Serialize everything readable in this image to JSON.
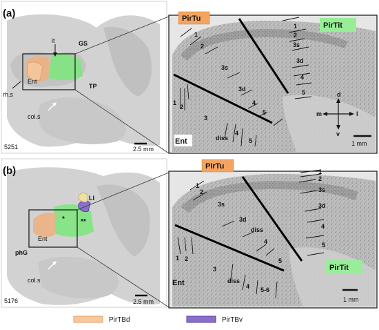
{
  "panel_a": {
    "letter": "(a)",
    "specimen": "5251",
    "overview": {
      "labels": [
        "it",
        "GS",
        "TP",
        "Ent",
        "rh.s",
        "col.s"
      ],
      "scale_bar": "2.5 mm"
    },
    "detail": {
      "pirtu_badge": "PirTu",
      "pirtit_badge": "PirTit",
      "ent_label": "Ent",
      "pirtit_layers": [
        "1",
        "2",
        "3s",
        "3d",
        "4",
        "5"
      ],
      "pirtu_layers": [
        "1",
        "2",
        "3s",
        "3d",
        "4",
        "5"
      ],
      "ent_layers": [
        "1",
        "2",
        "3",
        "diss",
        "4",
        "5"
      ],
      "compass": {
        "up": "d",
        "down": "v",
        "left": "m",
        "right": "l"
      },
      "scale_bar": "1 mm"
    }
  },
  "panel_b": {
    "letter": "(b)",
    "specimen": "5176",
    "overview": {
      "labels": [
        "LI",
        "*",
        "**",
        "Ent",
        "phG",
        "col.s"
      ],
      "scale_bar": "2.5 mm"
    },
    "detail": {
      "pirtu_badge": "PirTu",
      "pirtit_badge": "PirTit",
      "ent_label": "Ent",
      "pirtit_layers": [
        "1",
        "2",
        "3s",
        "3d",
        "4",
        "5"
      ],
      "pirtu_layers": [
        "1",
        "2",
        "3s",
        "3d",
        "diss",
        "4",
        "5"
      ],
      "ent_layers": [
        "1",
        "2",
        "3",
        "diss",
        "4",
        "5-6"
      ],
      "scale_bar": "1 mm"
    }
  },
  "legend": [
    {
      "label": "PirTBd",
      "color": "#f5c8a0",
      "border": "#e8a060"
    },
    {
      "label": "PirTBv",
      "color": "#8a6fc8",
      "border": "#5a3fa0"
    }
  ],
  "colors": {
    "pirtu": "#f4a460",
    "pirtit": "#90ee90",
    "green_region": "#7de87d",
    "ent_region": "#f0b080"
  }
}
